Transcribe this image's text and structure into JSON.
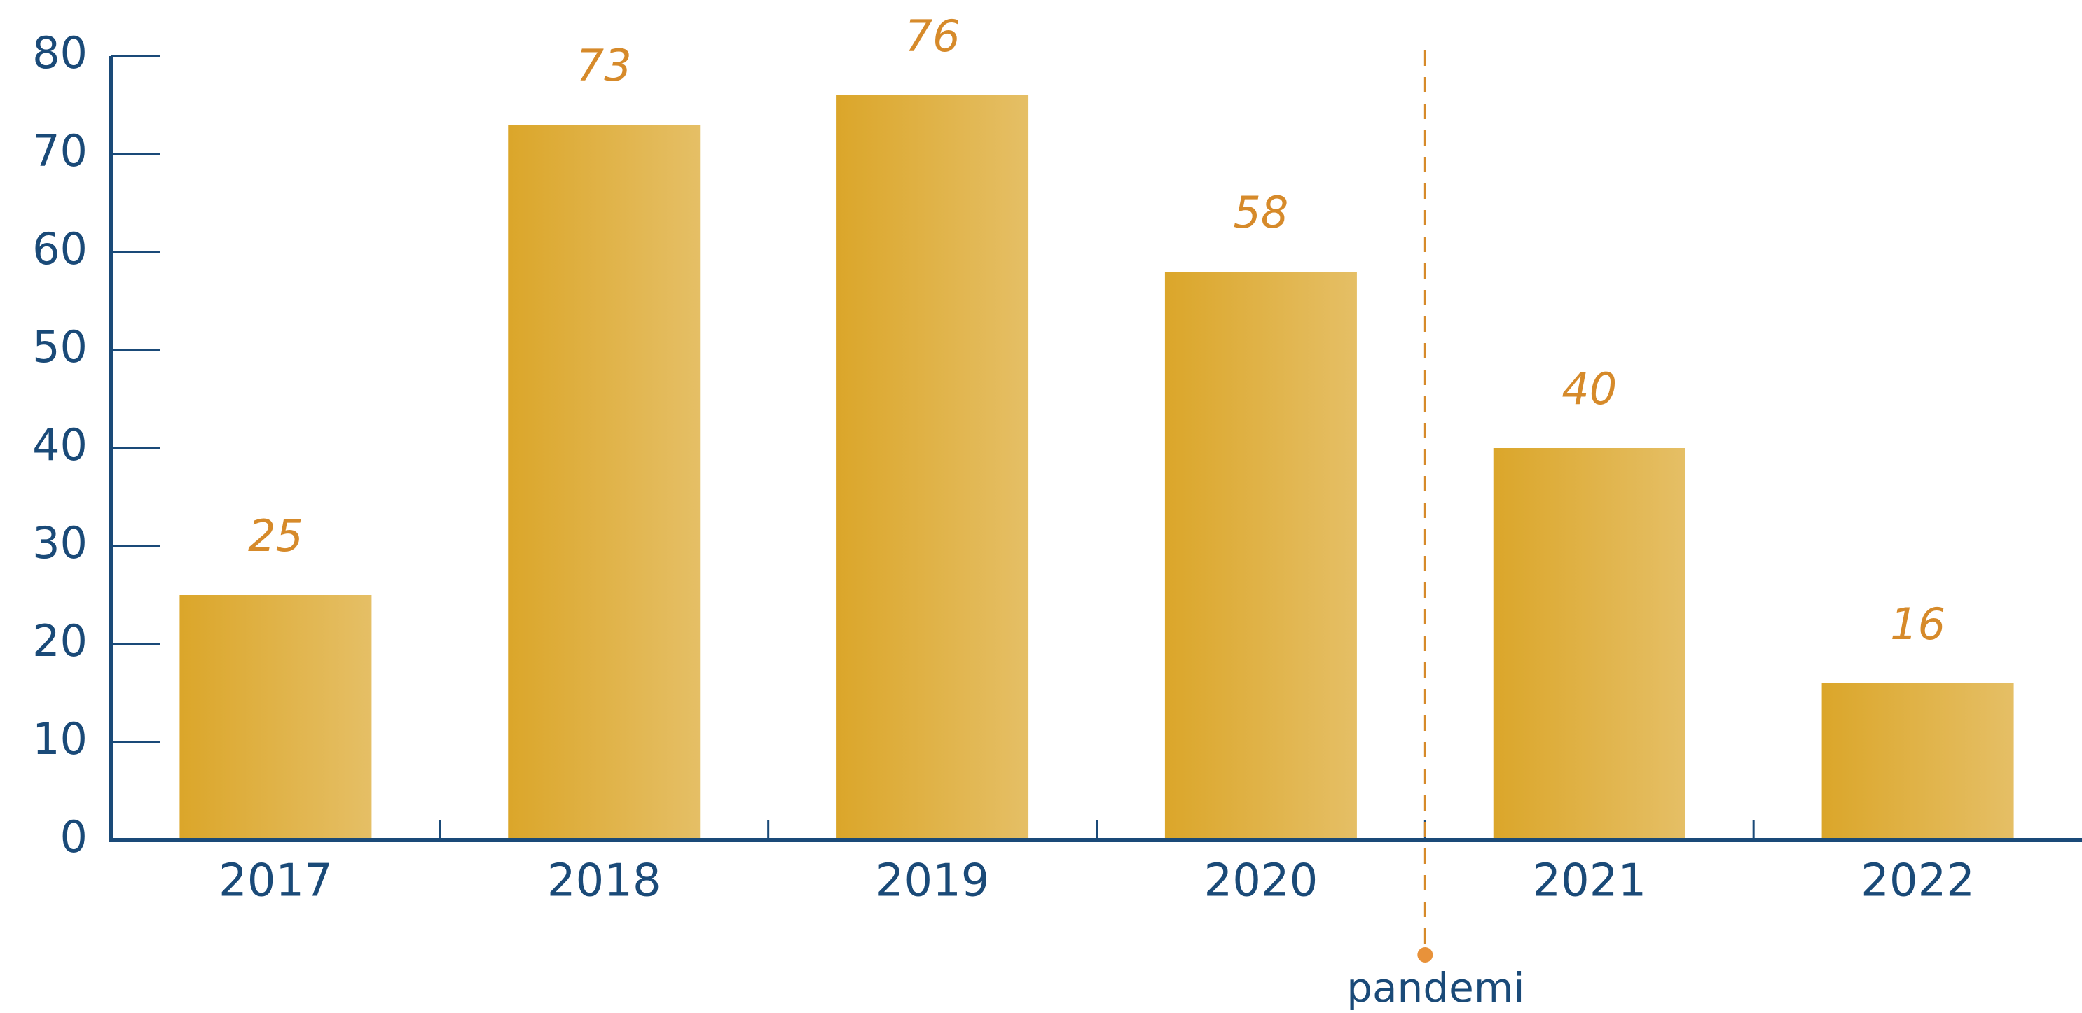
{
  "chart_data": {
    "type": "bar",
    "categories": [
      "2017",
      "2018",
      "2019",
      "2020",
      "2021",
      "2022"
    ],
    "values": [
      25,
      73,
      76,
      58,
      40,
      16
    ],
    "color": "#dba62a",
    "label_color": "#d68a2a",
    "ylim": [
      0,
      80
    ],
    "yticks": [
      0,
      10,
      20,
      30,
      40,
      50,
      60,
      70,
      80
    ],
    "grid": false,
    "annotations": [
      {
        "text": "pandemi"
      }
    ]
  }
}
